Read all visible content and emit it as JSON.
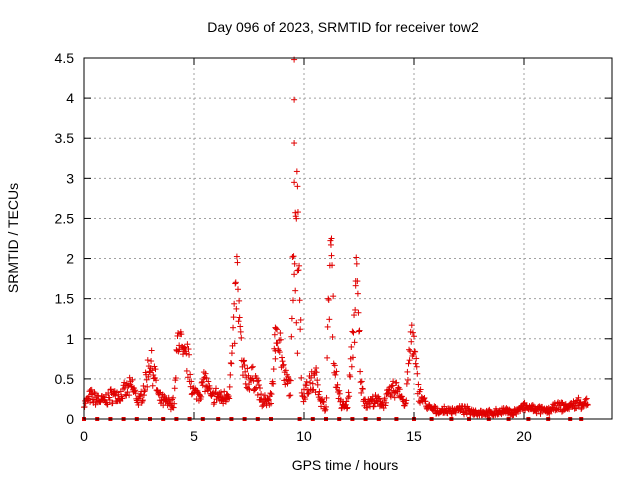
{
  "chart_data": {
    "type": "scatter",
    "title": "Day 096 of 2023, SRMTID for receiver tow2",
    "xlabel": "GPS time / hours",
    "ylabel": "SRMTID / TECUs",
    "xlim": [
      0,
      24
    ],
    "ylim": [
      0,
      4.5
    ],
    "xticks": [
      0,
      5,
      10,
      15,
      20
    ],
    "xtick_labels": [
      "0",
      "5",
      "10",
      "15",
      "20"
    ],
    "yticks": [
      0,
      0.5,
      1,
      1.5,
      2,
      2.5,
      3,
      3.5,
      4,
      4.5
    ],
    "ytick_labels": [
      "0",
      "0.5",
      "1",
      "1.5",
      "2",
      "2.5",
      "3",
      "3.5",
      "4",
      "4.5"
    ],
    "grid": true,
    "marker": "+",
    "color": "#e00000",
    "series": [
      {
        "name": "SRMTID",
        "profile": [
          [
            0.0,
            0.18
          ],
          [
            0.3,
            0.28
          ],
          [
            0.6,
            0.25
          ],
          [
            0.9,
            0.22
          ],
          [
            1.3,
            0.3
          ],
          [
            1.6,
            0.28
          ],
          [
            1.9,
            0.35
          ],
          [
            2.2,
            0.4
          ],
          [
            2.5,
            0.2
          ],
          [
            2.8,
            0.45
          ],
          [
            3.0,
            0.75
          ],
          [
            3.2,
            0.55
          ],
          [
            3.4,
            0.25
          ],
          [
            3.8,
            0.2
          ],
          [
            4.1,
            0.2
          ],
          [
            4.3,
            1.15
          ],
          [
            4.5,
            0.7
          ],
          [
            4.7,
            0.75
          ],
          [
            5.0,
            0.3
          ],
          [
            5.3,
            0.35
          ],
          [
            5.5,
            0.5
          ],
          [
            5.8,
            0.25
          ],
          [
            6.0,
            0.3
          ],
          [
            6.3,
            0.25
          ],
          [
            6.6,
            0.35
          ],
          [
            6.8,
            1.0
          ],
          [
            6.95,
            1.75
          ],
          [
            7.2,
            0.6
          ],
          [
            7.5,
            0.5
          ],
          [
            7.8,
            0.5
          ],
          [
            8.1,
            0.2
          ],
          [
            8.5,
            0.25
          ],
          [
            8.8,
            1.25
          ],
          [
            9.1,
            0.5
          ],
          [
            9.4,
            0.4
          ],
          [
            9.5,
            2.0
          ],
          [
            9.6,
            2.8
          ],
          [
            9.75,
            2.4
          ],
          [
            9.9,
            0.3
          ],
          [
            10.3,
            0.45
          ],
          [
            10.6,
            0.5
          ],
          [
            10.8,
            0.2
          ],
          [
            11.0,
            0.15
          ],
          [
            11.2,
            2.2
          ],
          [
            11.4,
            0.6
          ],
          [
            11.7,
            0.15
          ],
          [
            12.0,
            0.2
          ],
          [
            12.2,
            0.9
          ],
          [
            12.4,
            1.7
          ],
          [
            12.6,
            0.4
          ],
          [
            12.8,
            0.2
          ],
          [
            13.2,
            0.22
          ],
          [
            13.6,
            0.2
          ],
          [
            14.0,
            0.35
          ],
          [
            14.3,
            0.4
          ],
          [
            14.6,
            0.15
          ],
          [
            14.9,
            1.1
          ],
          [
            15.2,
            0.35
          ],
          [
            15.6,
            0.15
          ],
          [
            16.0,
            0.1
          ],
          [
            16.5,
            0.1
          ],
          [
            17.0,
            0.12
          ],
          [
            17.5,
            0.1
          ],
          [
            18.0,
            0.08
          ],
          [
            18.5,
            0.07
          ],
          [
            19.0,
            0.1
          ],
          [
            19.5,
            0.08
          ],
          [
            20.0,
            0.15
          ],
          [
            20.5,
            0.12
          ],
          [
            21.0,
            0.1
          ],
          [
            21.5,
            0.15
          ],
          [
            22.0,
            0.15
          ],
          [
            22.5,
            0.2
          ],
          [
            22.9,
            0.2
          ]
        ],
        "outliers": [
          [
            9.55,
            4.48
          ],
          [
            9.55,
            3.98
          ],
          [
            9.55,
            3.44
          ],
          [
            9.6,
            1.6
          ],
          [
            9.65,
            1.2
          ],
          [
            9.7,
            0.82
          ],
          [
            9.55,
            2.95
          ],
          [
            9.7,
            2.9
          ],
          [
            11.25,
            2.25
          ],
          [
            8.7,
            0.85
          ],
          [
            8.7,
            0.75
          ],
          [
            12.35,
            1.72
          ]
        ],
        "zero_markers": [
          0.0,
          0.6,
          1.2,
          1.8,
          2.4,
          3.0,
          3.6,
          4.2,
          4.8,
          5.4,
          6.1,
          6.7,
          7.3,
          7.9,
          8.5,
          9.8,
          10.4,
          11.0,
          11.6,
          12.2,
          12.8,
          13.4,
          14.2,
          15.0,
          15.8,
          16.7,
          17.5,
          18.4,
          19.3,
          20.2,
          21.1,
          22.1,
          22.6
        ]
      }
    ]
  }
}
